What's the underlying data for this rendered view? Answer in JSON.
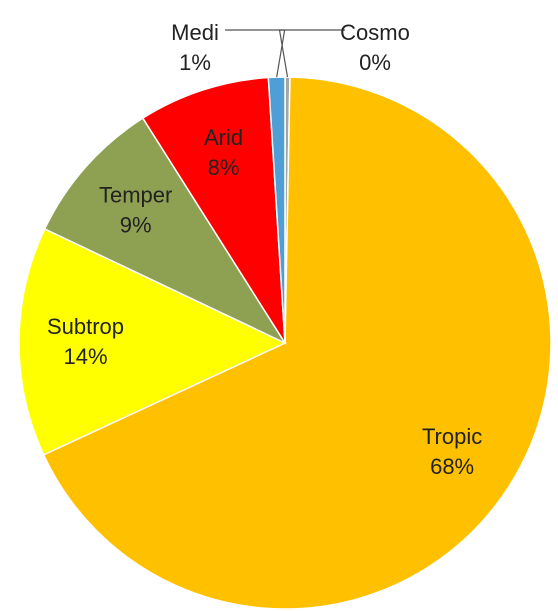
{
  "chart_data": {
    "type": "pie",
    "categories": [
      "Cosmo",
      "Tropic",
      "Subtrop",
      "Temper",
      "Arid",
      "Medi"
    ],
    "values": [
      0.3,
      68,
      14,
      9,
      8,
      1
    ],
    "value_labels": [
      "0%",
      "68%",
      "14%",
      "9%",
      "8%",
      "1%"
    ],
    "colors": [
      "#a5a5a5",
      "#ffc000",
      "#ffff00",
      "#8ea152",
      "#ff0000",
      "#4f9fd6"
    ]
  }
}
